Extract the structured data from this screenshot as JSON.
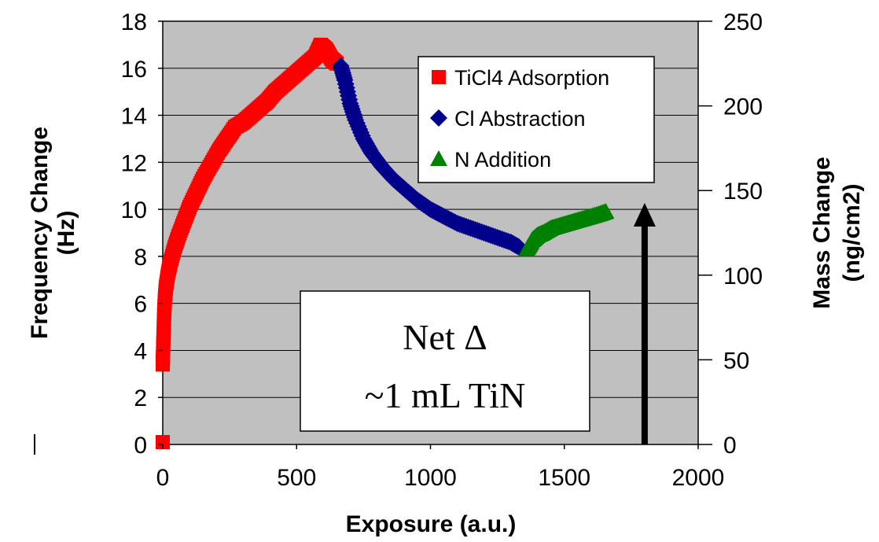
{
  "chart_data": {
    "type": "scatter",
    "xlabel": "Exposure (a.u.)",
    "ylabel": "Frequency Change (Hz)",
    "y2label": "Mass Change (ng/cm2)",
    "xlim": [
      0,
      2000
    ],
    "ylim": [
      0,
      18
    ],
    "y2lim": [
      0,
      250
    ],
    "x_ticks": [
      "0",
      "500",
      "1000",
      "1500",
      "2000"
    ],
    "y_ticks": [
      "0",
      "2",
      "4",
      "6",
      "8",
      "10",
      "12",
      "14",
      "16",
      "18"
    ],
    "y2_ticks": [
      "0",
      "50",
      "100",
      "150",
      "200",
      "250"
    ],
    "grid": "horizontal",
    "plot_background": "#c0c0c0",
    "legend_position": "top-right",
    "series": [
      {
        "name": "TiCl4 Adsorption",
        "color": "#ff0000",
        "marker": "square",
        "x": [
          0,
          0,
          2,
          5,
          8,
          12,
          20,
          30,
          45,
          60,
          80,
          100,
          125,
          150,
          180,
          210,
          240,
          270,
          300,
          330,
          360,
          390,
          420,
          450,
          480,
          510,
          540,
          570,
          590,
          610,
          630,
          650
        ],
        "y": [
          0.1,
          3.4,
          4.3,
          5.5,
          6.2,
          6.7,
          7.3,
          7.8,
          8.4,
          8.9,
          9.5,
          10.1,
          10.7,
          11.3,
          11.9,
          12.5,
          13.0,
          13.5,
          13.7,
          14.0,
          14.3,
          14.6,
          15.0,
          15.3,
          15.6,
          15.9,
          16.2,
          16.5,
          17.0,
          16.8,
          16.4,
          16.2
        ]
      },
      {
        "name": "Cl Abstraction",
        "color": "#00008b",
        "marker": "diamond",
        "x": [
          665,
          680,
          700,
          720,
          750,
          780,
          820,
          860,
          900,
          950,
          1000,
          1050,
          1100,
          1150,
          1200,
          1250,
          1300,
          1330
        ],
        "y": [
          16.1,
          15.5,
          14.5,
          13.8,
          13.0,
          12.4,
          11.8,
          11.3,
          10.9,
          10.4,
          10.0,
          9.7,
          9.4,
          9.2,
          9.0,
          8.8,
          8.6,
          8.4
        ]
      },
      {
        "name": "N Addition",
        "color": "#008000",
        "marker": "triangle",
        "x": [
          1360,
          1380,
          1400,
          1420,
          1450,
          1480,
          1510,
          1540,
          1570,
          1600,
          1630,
          1655
        ],
        "y": [
          8.3,
          8.7,
          8.9,
          9.0,
          9.2,
          9.3,
          9.4,
          9.5,
          9.6,
          9.7,
          9.8,
          9.9
        ]
      }
    ]
  },
  "annotation": {
    "line1": "Net Δ",
    "line2": "~1 mL TiN"
  },
  "arrow_x": 1800
}
